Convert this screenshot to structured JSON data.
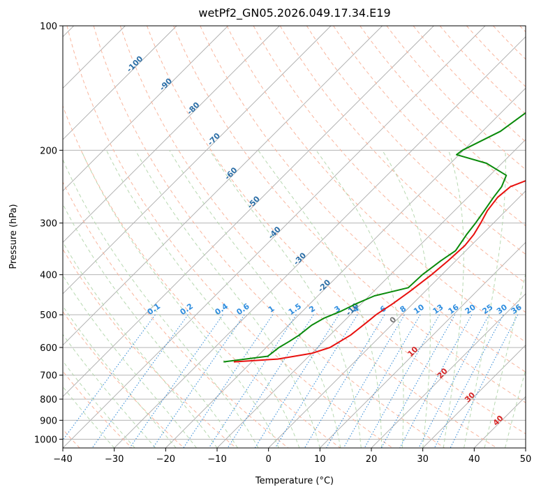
{
  "chart_data": {
    "type": "skew-t log-p",
    "title": "wetPf2_GN05.2026.049.17.34.E19",
    "xlabel": "Temperature (°C)",
    "ylabel": "Pressure (hPa)",
    "xlim": [
      -40,
      50
    ],
    "ylim": [
      1050,
      100
    ],
    "x_ticks": [
      "−40",
      "−30",
      "−20",
      "−10",
      "0",
      "10",
      "20",
      "30",
      "40",
      "50"
    ],
    "y_ticks": [
      "1000",
      "900",
      "800",
      "700",
      "600",
      "500",
      "400",
      "300",
      "200",
      "100"
    ],
    "temperature_series": {
      "name": "Temperature",
      "color": "#e8100e",
      "points": [
        [
          650,
          -23.5
        ],
        [
          640,
          -15.5
        ],
        [
          620,
          -10
        ],
        [
          600,
          -7.6
        ],
        [
          560,
          -6
        ],
        [
          520,
          -5.3
        ],
        [
          500,
          -5
        ],
        [
          470,
          -3.9
        ],
        [
          440,
          -3
        ],
        [
          400,
          -2
        ],
        [
          370,
          -1.5
        ],
        [
          340,
          -1.2
        ],
        [
          320,
          -1.6
        ],
        [
          300,
          -2.5
        ],
        [
          280,
          -3.6
        ],
        [
          260,
          -4.2
        ],
        [
          245,
          -3.8
        ],
        [
          235,
          -1.5
        ],
        [
          225,
          3
        ],
        [
          215,
          6.5
        ],
        [
          205,
          8.5
        ],
        [
          190,
          10
        ],
        [
          170,
          12
        ],
        [
          150,
          15.5
        ],
        [
          130,
          21.5
        ],
        [
          110,
          30
        ],
        [
          100,
          34
        ]
      ]
    },
    "dewpoint_series": {
      "name": "Dewpoint",
      "color": "#0a8a0a",
      "points": [
        [
          650,
          -25.5
        ],
        [
          630,
          -18
        ],
        [
          600,
          -17.5
        ],
        [
          580,
          -16.7
        ],
        [
          560,
          -16
        ],
        [
          530,
          -15.5
        ],
        [
          510,
          -14.5
        ],
        [
          490,
          -12.5
        ],
        [
          470,
          -11
        ],
        [
          450,
          -9
        ],
        [
          440,
          -6.5
        ],
        [
          430,
          -4
        ],
        [
          400,
          -3.8
        ],
        [
          370,
          -2.9
        ],
        [
          350,
          -2
        ],
        [
          320,
          -3
        ],
        [
          300,
          -3.5
        ],
        [
          280,
          -4.2
        ],
        [
          260,
          -5
        ],
        [
          245,
          -5.5
        ],
        [
          230,
          -6.8
        ],
        [
          215,
          -13
        ],
        [
          205,
          -20.5
        ],
        [
          200,
          -20.2
        ],
        [
          180,
          -16.5
        ],
        [
          160,
          -15
        ],
        [
          130,
          -9
        ],
        [
          110,
          -2.5
        ],
        [
          100,
          0.5
        ]
      ]
    },
    "dry_adiabat_labels": [
      "-100",
      "-90",
      "-80",
      "-70",
      "-60",
      "-50",
      "-40",
      "-30",
      "-20",
      "-10",
      "0",
      "10",
      "20",
      "30",
      "40"
    ],
    "mixing_ratio_labels": [
      "0.1",
      "0.2",
      "0.4",
      "0.6",
      "1",
      "1.5",
      "2",
      "3",
      "4",
      "6",
      "8",
      "10",
      "13",
      "16",
      "20",
      "25",
      "30",
      "36"
    ],
    "colors": {
      "isotherm": "#aaaaaa",
      "isobar": "#aaaaaa",
      "dry_adiabat": "#f9b59d",
      "moist_adiabat": "#b7d8b0",
      "mixing_ratio": "#3b8fd8",
      "label_cold": "#2c6fa7",
      "label_warm": "#d62728",
      "label_zero": "#777777",
      "mixing_label": "#2e8ddf"
    }
  }
}
